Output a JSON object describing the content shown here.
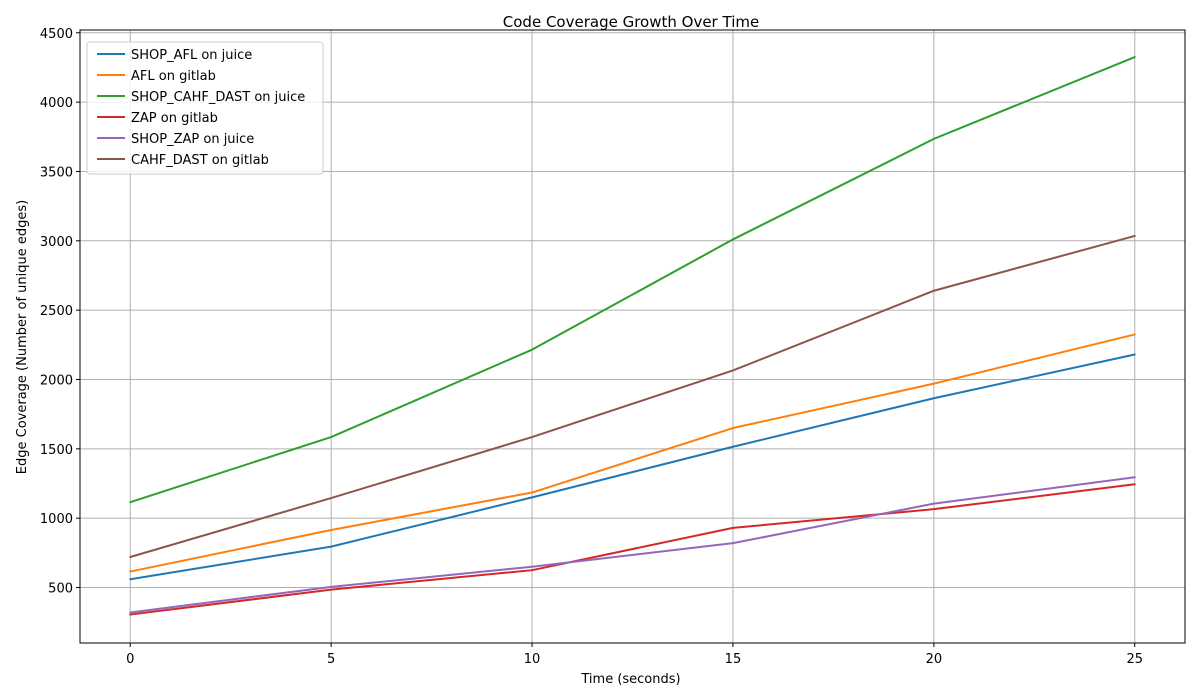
{
  "chart_data": {
    "type": "line",
    "title": "Code Coverage Growth Over Time",
    "xlabel": "Time (seconds)",
    "ylabel": "Edge Coverage (Number of unique edges)",
    "x": [
      0,
      5,
      10,
      15,
      20,
      25
    ],
    "xlim": [
      -1.25,
      26.25
    ],
    "ylim": [
      100,
      4520
    ],
    "xticks": [
      0,
      5,
      10,
      15,
      20,
      25
    ],
    "yticks": [
      500,
      1000,
      1500,
      2000,
      2500,
      3000,
      3500,
      4000,
      4500
    ],
    "grid": true,
    "legend_position": "upper-left",
    "series": [
      {
        "name": "SHOP_AFL on juice",
        "color": "#1f77b4",
        "values": [
          560,
          795,
          1150,
          1515,
          1865,
          2180
        ]
      },
      {
        "name": "AFL on gitlab",
        "color": "#ff7f0e",
        "values": [
          615,
          915,
          1185,
          1650,
          1970,
          2325
        ]
      },
      {
        "name": "SHOP_CAHF_DAST on juice",
        "color": "#2ca02c",
        "values": [
          1115,
          1585,
          2215,
          3010,
          3735,
          4325
        ]
      },
      {
        "name": "ZAP on gitlab",
        "color": "#d62728",
        "values": [
          305,
          485,
          625,
          930,
          1065,
          1245
        ]
      },
      {
        "name": "SHOP_ZAP on juice",
        "color": "#9467bd",
        "values": [
          320,
          505,
          650,
          820,
          1105,
          1295
        ]
      },
      {
        "name": "CAHF_DAST on gitlab",
        "color": "#8c564b",
        "values": [
          720,
          1145,
          1585,
          2065,
          2640,
          3035
        ]
      }
    ]
  }
}
